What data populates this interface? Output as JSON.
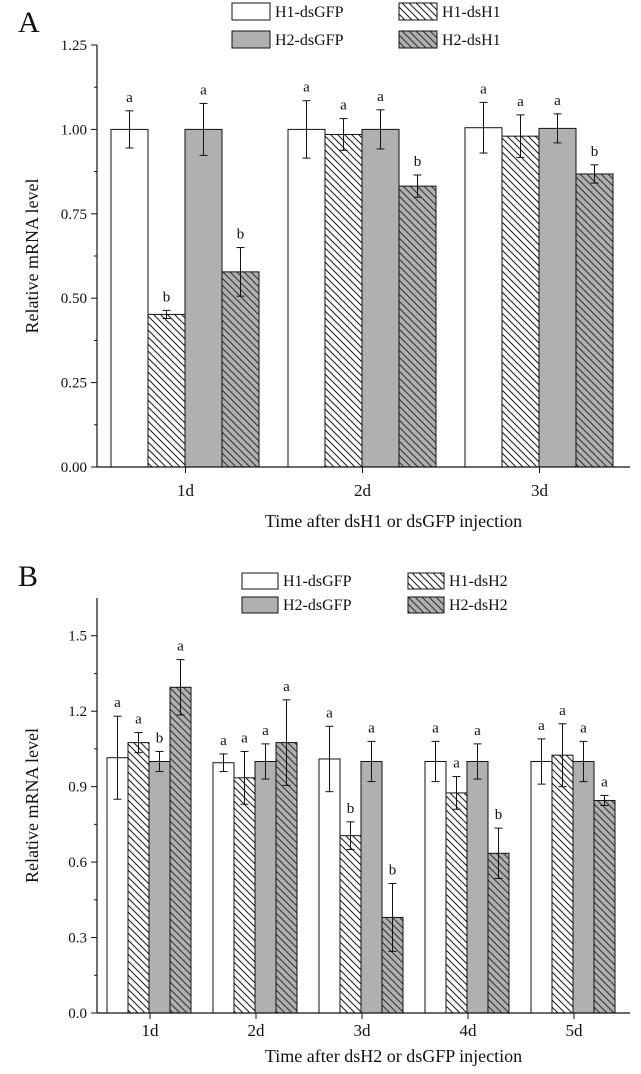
{
  "chart_data": [
    {
      "panel_label": "A",
      "type": "bar",
      "title": "",
      "xlabel": "Time after dsH1 or dsGFP injection",
      "ylabel": "Relative mRNA level",
      "ylim": [
        0,
        1.25
      ],
      "yticks": [
        "0.00",
        "0.25",
        "0.50",
        "0.75",
        "1.00",
        "1.25"
      ],
      "categories": [
        "1d",
        "2d",
        "3d"
      ],
      "legend_position": "top",
      "series": [
        {
          "name": "H1-dsGFP",
          "pattern": "open",
          "values": [
            1.0,
            1.0,
            1.005
          ],
          "errors": [
            0.055,
            0.085,
            0.075
          ],
          "labels": [
            "a",
            "a",
            "a"
          ]
        },
        {
          "name": "H1-dsH1",
          "pattern": "hatch-down",
          "values": [
            0.452,
            0.985,
            0.98
          ],
          "errors": [
            0.012,
            0.047,
            0.063
          ],
          "labels": [
            "b",
            "a",
            "a"
          ]
        },
        {
          "name": "H2-dsGFP",
          "pattern": "gray",
          "values": [
            1.0,
            1.0,
            1.003
          ],
          "errors": [
            0.077,
            0.058,
            0.043
          ],
          "labels": [
            "a",
            "a",
            "a"
          ]
        },
        {
          "name": "H2-dsH1",
          "pattern": "gray-hatch",
          "values": [
            0.578,
            0.832,
            0.868
          ],
          "errors": [
            0.072,
            0.033,
            0.027
          ],
          "labels": [
            "b",
            "b",
            "b"
          ]
        }
      ]
    },
    {
      "panel_label": "B",
      "type": "bar",
      "title": "",
      "xlabel": "Time after dsH2 or dsGFP injection",
      "ylabel": "Relative mRNA level",
      "ylim": [
        0,
        1.65
      ],
      "yticks": [
        "0.0",
        "0.3",
        "0.6",
        "0.9",
        "1.2",
        "1.5"
      ],
      "categories": [
        "1d",
        "2d",
        "3d",
        "4d",
        "5d"
      ],
      "legend_position": "top",
      "series": [
        {
          "name": "H1-dsGFP",
          "pattern": "open",
          "values": [
            1.015,
            0.995,
            1.01,
            1.0,
            1.0
          ],
          "errors": [
            0.165,
            0.035,
            0.13,
            0.08,
            0.09
          ],
          "labels": [
            "a",
            "a",
            "a",
            "a",
            "a"
          ]
        },
        {
          "name": "H1-dsH2",
          "pattern": "hatch-down",
          "values": [
            1.075,
            0.935,
            0.705,
            0.875,
            1.025
          ],
          "errors": [
            0.04,
            0.105,
            0.055,
            0.065,
            0.125
          ],
          "labels": [
            "a",
            "a",
            "b",
            "a",
            "a"
          ]
        },
        {
          "name": "H2-dsGFP",
          "pattern": "gray",
          "values": [
            1.0,
            1.0,
            1.0,
            1.0,
            1.0
          ],
          "errors": [
            0.04,
            0.07,
            0.08,
            0.07,
            0.08
          ],
          "labels": [
            "b",
            "a",
            "a",
            "a",
            "a"
          ]
        },
        {
          "name": "H2-dsH2",
          "pattern": "gray-hatch",
          "values": [
            1.295,
            1.075,
            0.38,
            0.635,
            0.845
          ],
          "errors": [
            0.11,
            0.17,
            0.135,
            0.1,
            0.02
          ],
          "labels": [
            "a",
            "a",
            "b",
            "b",
            "a"
          ]
        }
      ]
    }
  ]
}
